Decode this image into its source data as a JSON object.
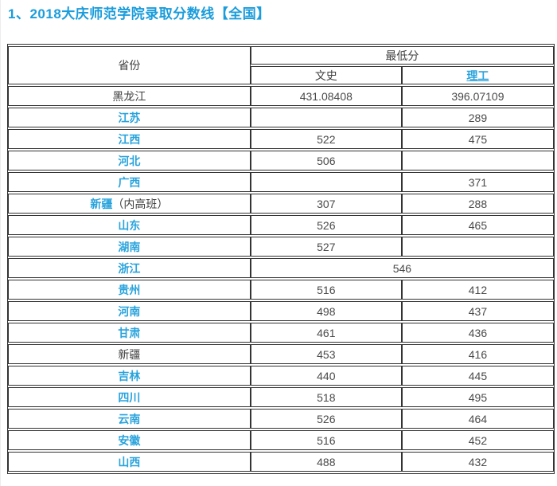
{
  "page": {
    "title": "1、2018大庆师范学院录取分数线【全国】"
  },
  "colors": {
    "accent_blue": "#29a3dc",
    "title_blue": "#1b9cdb",
    "table_border": "#333333",
    "text_dark": "#4a4a4a"
  },
  "table": {
    "headers": {
      "province": "省份",
      "min_score": "最低分",
      "liberal_arts": "文史",
      "science": "理工"
    },
    "rows": [
      {
        "province": "黑龙江",
        "wen": "431.08408",
        "li": "396.07109",
        "link": false
      },
      {
        "province": "江苏",
        "wen": "",
        "li": "289",
        "link": true
      },
      {
        "province": "江西",
        "wen": "522",
        "li": "475",
        "link": true
      },
      {
        "province": "河北",
        "wen": "506",
        "li": "",
        "link": true
      },
      {
        "province": "广西",
        "wen": "",
        "li": "371",
        "link": true
      },
      {
        "province": "新疆",
        "suffix": "（内高班）",
        "wen": "307",
        "li": "288",
        "link": true
      },
      {
        "province": "山东",
        "wen": "526",
        "li": "465",
        "link": true
      },
      {
        "province": "湖南",
        "wen": "527",
        "li": "",
        "link": true
      },
      {
        "province": "浙江",
        "merged": "546",
        "link": true
      },
      {
        "province": "贵州",
        "wen": "516",
        "li": "412",
        "link": true
      },
      {
        "province": "河南",
        "wen": "498",
        "li": "437",
        "link": true
      },
      {
        "province": "甘肃",
        "wen": "461",
        "li": "436",
        "link": true
      },
      {
        "province": "新疆",
        "wen": "453",
        "li": "416",
        "link": false
      },
      {
        "province": "吉林",
        "wen": "440",
        "li": "445",
        "link": true
      },
      {
        "province": "四川",
        "wen": "518",
        "li": "495",
        "link": true
      },
      {
        "province": "云南",
        "wen": "526",
        "li": "464",
        "link": true
      },
      {
        "province": "安徽",
        "wen": "516",
        "li": "452",
        "link": true
      },
      {
        "province": "山西",
        "wen": "488",
        "li": "432",
        "link": true
      }
    ]
  }
}
